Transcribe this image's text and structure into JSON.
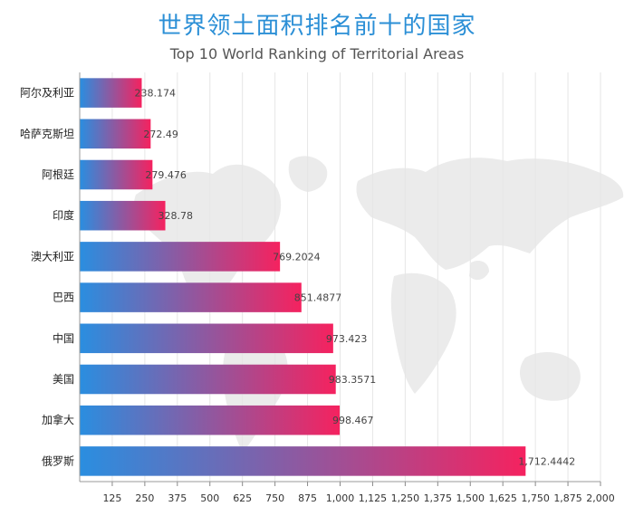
{
  "chart_data": {
    "type": "bar",
    "orientation": "horizontal",
    "title": "世界领土面积排名前十的国家",
    "subtitle": "Top 10 World Ranking of Territorial Areas",
    "categories": [
      "阿尔及利亚",
      "哈萨克斯坦",
      "阿根廷",
      "印度",
      "澳大利亚",
      "巴西",
      "中国",
      "美国",
      "加拿大",
      "俄罗斯"
    ],
    "values": [
      238.174,
      272.49,
      279.476,
      328.78,
      769.2024,
      851.4877,
      973.423,
      983.3571,
      998.467,
      1712.4442
    ],
    "value_labels": [
      "238.174",
      "272.49",
      "279.476",
      "328.78",
      "769.2024",
      "851.4877",
      "973.423",
      "983.3571",
      "998.467",
      "1,712.4442"
    ],
    "xlim": [
      0,
      2000
    ],
    "x_ticks": [
      125,
      250,
      375,
      500,
      625,
      750,
      875,
      1000,
      1125,
      1250,
      1375,
      1500,
      1625,
      1750,
      1875,
      2000
    ],
    "x_tick_labels": [
      "125",
      "250",
      "375",
      "500",
      "625",
      "750",
      "875",
      "1,000",
      "1,125",
      "1,250",
      "1,375",
      "1,500",
      "1,625",
      "1,750",
      "1,875",
      "2,000"
    ],
    "grid": true,
    "legend": "none",
    "colors": {
      "gradient_start": "#2a8ee0",
      "gradient_end": "#f5225f",
      "title": "#2b8fd6",
      "grid": "#e6e6e6",
      "map": "#ebebeb"
    }
  }
}
